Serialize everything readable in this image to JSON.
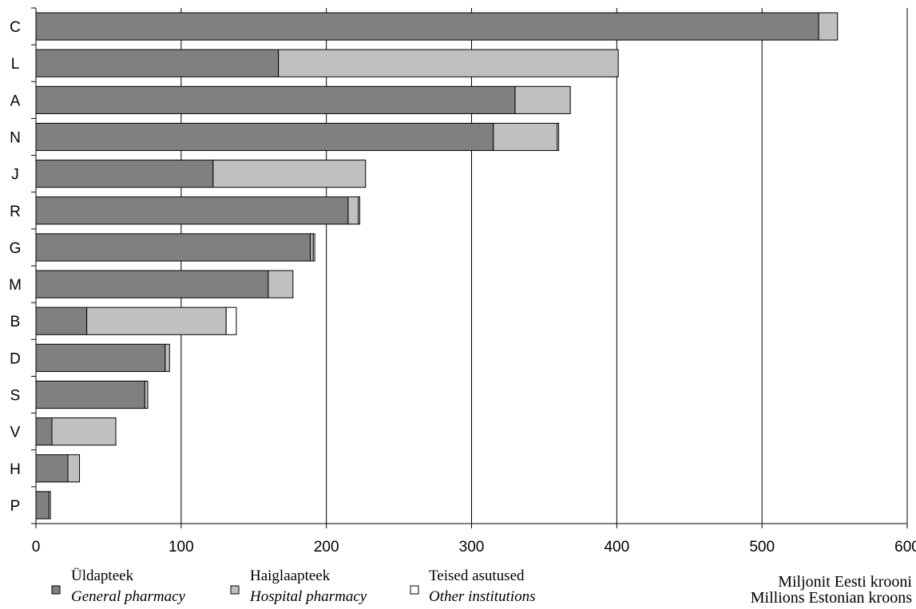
{
  "chart_data": {
    "type": "bar",
    "orientation": "horizontal",
    "stacked": true,
    "categories": [
      "C",
      "L",
      "A",
      "N",
      "J",
      "R",
      "G",
      "M",
      "B",
      "D",
      "S",
      "V",
      "H",
      "P"
    ],
    "series": [
      {
        "name": "Üldapteek",
        "name_en": "General pharmacy",
        "color": "#808080",
        "values": [
          539,
          167,
          330,
          315,
          122,
          215,
          189,
          160,
          35,
          89,
          75,
          11,
          22,
          9
        ]
      },
      {
        "name": "Haiglaapteek",
        "name_en": "Hospital pharmacy",
        "color": "#c0c0c0",
        "values": [
          13,
          234,
          38,
          44,
          105,
          7,
          2,
          17,
          96,
          3,
          2,
          44,
          8,
          0
        ]
      },
      {
        "name": "Teised asutused",
        "name_en": "Other institutions",
        "color": "#ffffff",
        "values": [
          0,
          0,
          0,
          1,
          0,
          1,
          1,
          0,
          7,
          0,
          0,
          0,
          0,
          1
        ]
      }
    ],
    "xlim": [
      0,
      600
    ],
    "xticks": [
      0,
      100,
      200,
      300,
      400,
      500,
      600
    ],
    "grid": true,
    "legend_position": "bottom",
    "unit_label": "Miljonit Eesti krooni",
    "unit_label_en": "Millions Estonian kroons"
  }
}
